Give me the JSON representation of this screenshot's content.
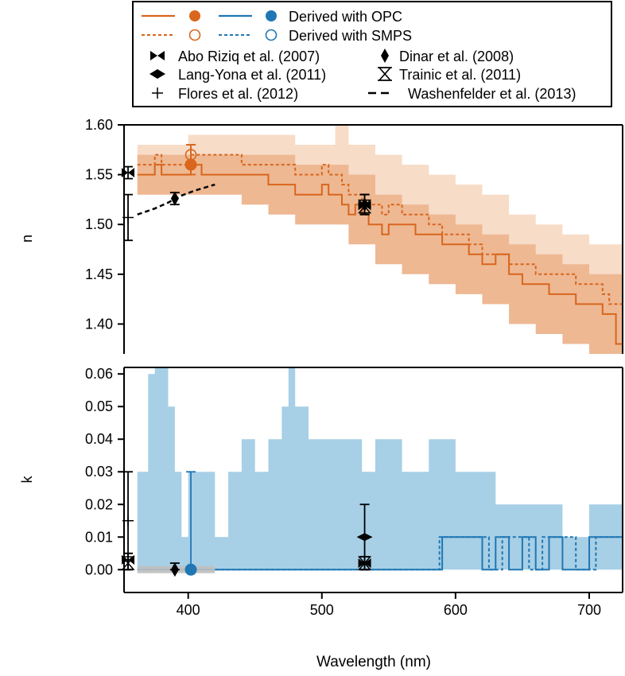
{
  "colors": {
    "opc": "#1f77b4",
    "orange": "#d8661c",
    "orange_band_dark": "#eeb893",
    "orange_band_light": "#f7dcc8",
    "blue_band": "#a7cfe6",
    "grey_band": "#bfbfbf"
  },
  "legend": {
    "opc_label": "Derived with OPC",
    "smps_label": "Derived with SMPS",
    "lit": [
      "Abo Riziq et al. (2007)",
      "Dinar et al. (2008)",
      "Lang-Yona et al. (2011)",
      "Trainic et al. (2011)",
      "Flores et al. (2012)",
      "Washenfelder et al. (2013)"
    ]
  },
  "chart_data": [
    {
      "type": "line",
      "panel": "top",
      "ylabel": "n",
      "xlim": [
        352,
        725
      ],
      "ylim": [
        1.37,
        1.6
      ],
      "yticks": [
        "1.60",
        "1.55",
        "1.50",
        "1.45",
        "1.40"
      ],
      "ytick_values": [
        1.6,
        1.55,
        1.5,
        1.45,
        1.4
      ],
      "series": [
        {
          "style": "orange-solid",
          "x": [
            362,
            370,
            375,
            380,
            385,
            388,
            395,
            402,
            410,
            420,
            430,
            440,
            450,
            460,
            470,
            480,
            490,
            500,
            505,
            510,
            515,
            520,
            525,
            530,
            535,
            540,
            545,
            550,
            560,
            570,
            580,
            590,
            600,
            610,
            620,
            630,
            640,
            650,
            660,
            670,
            680,
            690,
            700,
            710,
            715,
            720,
            725
          ],
          "y": [
            1.55,
            1.55,
            1.56,
            1.55,
            1.55,
            1.55,
            1.55,
            1.56,
            1.55,
            1.55,
            1.55,
            1.55,
            1.55,
            1.54,
            1.54,
            1.53,
            1.53,
            1.54,
            1.53,
            1.53,
            1.52,
            1.51,
            1.52,
            1.51,
            1.5,
            1.5,
            1.49,
            1.5,
            1.5,
            1.49,
            1.49,
            1.48,
            1.48,
            1.47,
            1.46,
            1.47,
            1.45,
            1.44,
            1.44,
            1.43,
            1.43,
            1.42,
            1.42,
            1.41,
            1.41,
            1.38,
            1.44
          ]
        },
        {
          "style": "orange-dashed",
          "x": [
            362,
            370,
            375,
            380,
            385,
            388,
            395,
            402,
            410,
            420,
            430,
            440,
            450,
            460,
            470,
            480,
            490,
            500,
            505,
            510,
            515,
            520,
            525,
            530,
            535,
            540,
            545,
            550,
            560,
            570,
            580,
            590,
            600,
            610,
            620,
            630,
            640,
            650,
            660,
            670,
            680,
            690,
            700,
            710,
            715,
            720,
            725
          ],
          "y": [
            1.56,
            1.56,
            1.57,
            1.56,
            1.56,
            1.56,
            1.56,
            1.57,
            1.57,
            1.57,
            1.57,
            1.56,
            1.56,
            1.56,
            1.56,
            1.55,
            1.55,
            1.56,
            1.55,
            1.55,
            1.54,
            1.53,
            1.53,
            1.52,
            1.52,
            1.52,
            1.51,
            1.52,
            1.51,
            1.51,
            1.5,
            1.49,
            1.49,
            1.48,
            1.47,
            1.47,
            1.46,
            1.46,
            1.45,
            1.45,
            1.45,
            1.44,
            1.44,
            1.43,
            1.42,
            1.42,
            1.47
          ]
        },
        {
          "style": "black-dashed",
          "x": [
            362,
            375,
            385,
            395,
            405,
            415,
            420
          ],
          "y": [
            1.51,
            1.516,
            1.522,
            1.529,
            1.534,
            1.538,
            1.54
          ]
        }
      ],
      "bands": [
        {
          "style": "orange-light",
          "x": [
            362,
            400,
            420,
            440,
            460,
            480,
            500,
            510,
            520,
            540,
            560,
            580,
            600,
            620,
            640,
            660,
            680,
            700,
            725
          ],
          "lower": [
            1.53,
            1.53,
            1.53,
            1.53,
            1.52,
            1.51,
            1.51,
            1.5,
            1.49,
            1.48,
            1.47,
            1.46,
            1.45,
            1.44,
            1.43,
            1.41,
            1.4,
            1.39,
            1.37
          ],
          "upper": [
            1.58,
            1.59,
            1.59,
            1.59,
            1.59,
            1.58,
            1.58,
            1.6,
            1.58,
            1.57,
            1.56,
            1.55,
            1.54,
            1.53,
            1.51,
            1.5,
            1.49,
            1.48,
            1.47
          ]
        },
        {
          "style": "orange-dark",
          "x": [
            362,
            400,
            420,
            440,
            460,
            480,
            500,
            520,
            540,
            560,
            580,
            600,
            620,
            640,
            660,
            680,
            700,
            725
          ],
          "lower": [
            1.53,
            1.53,
            1.53,
            1.52,
            1.51,
            1.5,
            1.5,
            1.48,
            1.46,
            1.45,
            1.44,
            1.43,
            1.42,
            1.4,
            1.39,
            1.38,
            1.37,
            1.37
          ],
          "upper": [
            1.57,
            1.57,
            1.57,
            1.57,
            1.57,
            1.56,
            1.56,
            1.55,
            1.53,
            1.52,
            1.51,
            1.5,
            1.49,
            1.48,
            1.47,
            1.46,
            1.45,
            1.44
          ]
        }
      ],
      "points": [
        {
          "marker": "filled-circle",
          "color": "orange",
          "x": 402,
          "y": 1.56,
          "err": [
            1.55,
            1.58
          ]
        },
        {
          "marker": "open-circle",
          "color": "orange",
          "x": 402,
          "y": 1.57,
          "err": [
            1.55,
            1.58
          ]
        },
        {
          "marker": "bowtie",
          "x": 355,
          "y": 1.552,
          "err": [
            1.546,
            1.558
          ]
        },
        {
          "marker": "plus",
          "x": 355,
          "y": 1.507,
          "err": [
            1.484,
            1.53
          ]
        },
        {
          "marker": "diamond",
          "x": 390,
          "y": 1.526,
          "err": [
            1.52,
            1.532
          ]
        },
        {
          "marker": "bowtie",
          "x": 532,
          "y": 1.519,
          "err": [
            1.51,
            1.53
          ]
        },
        {
          "marker": "diamond",
          "x": 532,
          "y": 1.52,
          "err": [
            1.51,
            1.53
          ]
        },
        {
          "marker": "hourglass",
          "x": 532,
          "y": 1.518,
          "err": [
            1.51,
            1.53
          ]
        }
      ]
    },
    {
      "type": "line",
      "panel": "bottom",
      "ylabel": "k",
      "xlabel": "Wavelength (nm)",
      "xlim": [
        352,
        725
      ],
      "ylim": [
        -0.007,
        0.062
      ],
      "xticks": [
        "400",
        "500",
        "600",
        "700"
      ],
      "xtick_values": [
        400,
        500,
        600,
        700
      ],
      "yticks": [
        "0.06",
        "0.05",
        "0.04",
        "0.03",
        "0.02",
        "0.01",
        "0.00"
      ],
      "ytick_values": [
        0.06,
        0.05,
        0.04,
        0.03,
        0.02,
        0.01,
        0.0
      ],
      "series": [
        {
          "style": "blue-solid",
          "x": [
            362,
            590,
            590,
            620,
            620,
            630,
            630,
            640,
            640,
            650,
            650,
            660,
            660,
            670,
            670,
            680,
            680,
            700,
            700,
            725
          ],
          "y": [
            0,
            0,
            0.01,
            0.01,
            0,
            0,
            0.01,
            0.01,
            0,
            0,
            0.01,
            0.01,
            0,
            0,
            0.01,
            0.01,
            0,
            0,
            0.01,
            0.01
          ]
        },
        {
          "style": "blue-dashed",
          "x": [
            362,
            588,
            588,
            625,
            625,
            635,
            635,
            655,
            655,
            665,
            665,
            690,
            690,
            705,
            705,
            725
          ],
          "y": [
            0,
            0,
            0.01,
            0.01,
            0,
            0,
            0.01,
            0.01,
            0,
            0,
            0.01,
            0.01,
            0,
            0,
            0.01,
            0.01
          ]
        },
        {
          "style": "grey-band",
          "x": [
            362,
            420
          ],
          "y": [
            0,
            0
          ]
        }
      ],
      "bands": [
        {
          "style": "blue",
          "x": [
            362,
            370,
            375,
            385,
            390,
            395,
            400,
            410,
            420,
            430,
            440,
            450,
            460,
            470,
            475,
            480,
            490,
            500,
            510,
            520,
            530,
            540,
            560,
            580,
            600,
            610,
            620,
            630,
            640,
            660,
            680,
            700,
            725
          ],
          "lower": [
            0,
            0,
            0,
            0,
            0,
            0,
            0,
            0,
            0,
            0,
            0,
            0,
            0,
            0,
            0,
            0,
            0,
            0,
            0,
            0,
            0,
            0,
            0,
            0,
            0,
            0,
            0,
            0,
            0,
            0,
            0,
            0,
            0
          ],
          "upper": [
            0.03,
            0.06,
            0.062,
            0.05,
            0.03,
            0.01,
            0.03,
            0.03,
            0.01,
            0.03,
            0.04,
            0.03,
            0.04,
            0.05,
            0.062,
            0.05,
            0.04,
            0.04,
            0.04,
            0.04,
            0.03,
            0.04,
            0.03,
            0.04,
            0.03,
            0.03,
            0.03,
            0.02,
            0.02,
            0.02,
            0.01,
            0.02,
            0.01
          ]
        }
      ],
      "points": [
        {
          "marker": "filled-circle",
          "color": "opc",
          "x": 402,
          "y": 0.0,
          "err": [
            0,
            0.03
          ]
        },
        {
          "marker": "bowtie",
          "x": 355,
          "y": 0.003,
          "err": [
            0,
            0.005
          ]
        },
        {
          "marker": "hourglass",
          "x": 355,
          "y": 0.002,
          "err": [
            0,
            0.005
          ]
        },
        {
          "marker": "plus",
          "x": 355,
          "y": 0.015,
          "err": [
            0,
            0.03
          ]
        },
        {
          "marker": "diamond",
          "x": 390,
          "y": 0.0,
          "err": [
            0,
            0.002
          ]
        },
        {
          "marker": "lang",
          "x": 532,
          "y": 0.01,
          "err": [
            0,
            0.02
          ]
        },
        {
          "marker": "bowtie",
          "x": 532,
          "y": 0.002,
          "err": [
            0,
            0.004
          ]
        },
        {
          "marker": "hourglass",
          "x": 532,
          "y": 0.002,
          "err": [
            0,
            0.004
          ]
        }
      ]
    }
  ]
}
